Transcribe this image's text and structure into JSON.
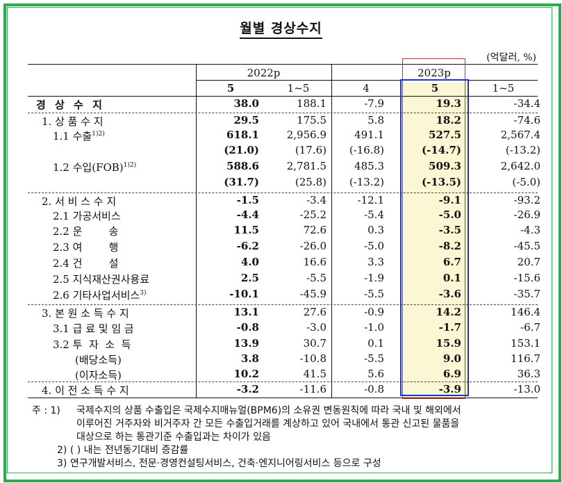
{
  "title": "월별 경상수지",
  "unit": "(억달러, %)",
  "header": {
    "year_2022": "2022p",
    "year_2023": "2023p",
    "cols": [
      "5",
      "1~5",
      "4",
      "5",
      "1~5"
    ]
  },
  "rows": [
    {
      "label": "경 상 수 지",
      "bold_label": true,
      "values": [
        "38.0",
        "188.1",
        "-7.9",
        "19.3",
        "-34.4"
      ]
    },
    {
      "label": "1. 상 품 수 지",
      "values": [
        "29.5",
        "175.5",
        "5.8",
        "18.2",
        "-74.6"
      ]
    },
    {
      "label": "1.1 수출",
      "sup": "1)2)",
      "values": [
        "618.1",
        "2,956.9",
        "491.1",
        "527.5",
        "2,567.4"
      ]
    },
    {
      "label": "",
      "values": [
        "(21.0)",
        "(17.6)",
        "(-16.8)",
        "(-14.7)",
        "(-13.2)"
      ]
    },
    {
      "label": "1.2 수입(FOB)",
      "sup": "1)2)",
      "values": [
        "588.6",
        "2,781.5",
        "485.3",
        "509.3",
        "2,642.0"
      ]
    },
    {
      "label": "",
      "values": [
        "(31.7)",
        "(25.8)",
        "(-13.2)",
        "(-13.5)",
        "(-5.0)"
      ]
    },
    {
      "label": "2. 서 비 스 수 지",
      "values": [
        "-1.5",
        "-3.4",
        "-12.1",
        "-9.1",
        "-93.2"
      ]
    },
    {
      "label": "2.1 가공서비스",
      "values": [
        "-4.4",
        "-25.2",
        "-5.4",
        "-5.0",
        "-26.9"
      ]
    },
    {
      "label": "2.2 운        송",
      "values": [
        "11.5",
        "72.6",
        "0.3",
        "-3.5",
        "-4.3"
      ]
    },
    {
      "label": "2.3 여        행",
      "values": [
        "-6.2",
        "-26.0",
        "-5.0",
        "-8.2",
        "-45.5"
      ]
    },
    {
      "label": "2.4 건        설",
      "values": [
        "4.0",
        "16.6",
        "3.3",
        "6.7",
        "20.7"
      ]
    },
    {
      "label": "2.5 지식재산권사용료",
      "values": [
        "2.5",
        "-5.5",
        "-1.9",
        "0.1",
        "-15.6"
      ]
    },
    {
      "label": "2.6 기타사업서비스",
      "sup": "3)",
      "values": [
        "-10.1",
        "-45.9",
        "-5.5",
        "-3.6",
        "-35.7"
      ]
    },
    {
      "label": "3. 본 원 소 득 수 지",
      "values": [
        "13.1",
        "27.6",
        "-0.9",
        "14.2",
        "146.4"
      ]
    },
    {
      "label": "3.1 급 료 및 임 금",
      "values": [
        "-0.8",
        "-3.0",
        "-1.0",
        "-1.7",
        "-6.7"
      ]
    },
    {
      "label": "3.2 투  자  소  득",
      "values": [
        "13.9",
        "30.7",
        "0.1",
        "15.9",
        "153.1"
      ]
    },
    {
      "label": "(배당소득)",
      "values": [
        "3.8",
        "-10.8",
        "-5.5",
        "9.0",
        "116.7"
      ]
    },
    {
      "label": "(이자소득)",
      "values": [
        "10.2",
        "41.5",
        "5.6",
        "6.9",
        "36.3"
      ]
    },
    {
      "label": "4. 이 전 소 득 수 지",
      "values": [
        "-3.2",
        "-11.6",
        "-0.8",
        "-3.9",
        "-13.0"
      ]
    }
  ],
  "notes": {
    "prefix": "주 : 1)",
    "n1_l1": "국제수지의 상품 수출입은 국제수지매뉴얼(BPM6)의 소유권 변동원칙에 따라 국내 및 해외에서",
    "n1_l2": "이루어진 거주자와 비거주자 간 모든 수출입거래를 계상하고 있어 국내에서 통관 신고된 물품을",
    "n1_l3": "대상으로 하는 통관기준 수출입과는 차이가 있음",
    "n2": "2) (  ) 내는 전년동기대비 증감률",
    "n3": "3) 연구개발서비스, 전문·경영컨설팅서비스, 건축·엔지니어링서비스 등으로 구성"
  },
  "colors": {
    "frame": "#2fa84f",
    "highlight": "#fbf6d4",
    "red_box": "#e02020",
    "blue_box": "#1e2ecf"
  }
}
